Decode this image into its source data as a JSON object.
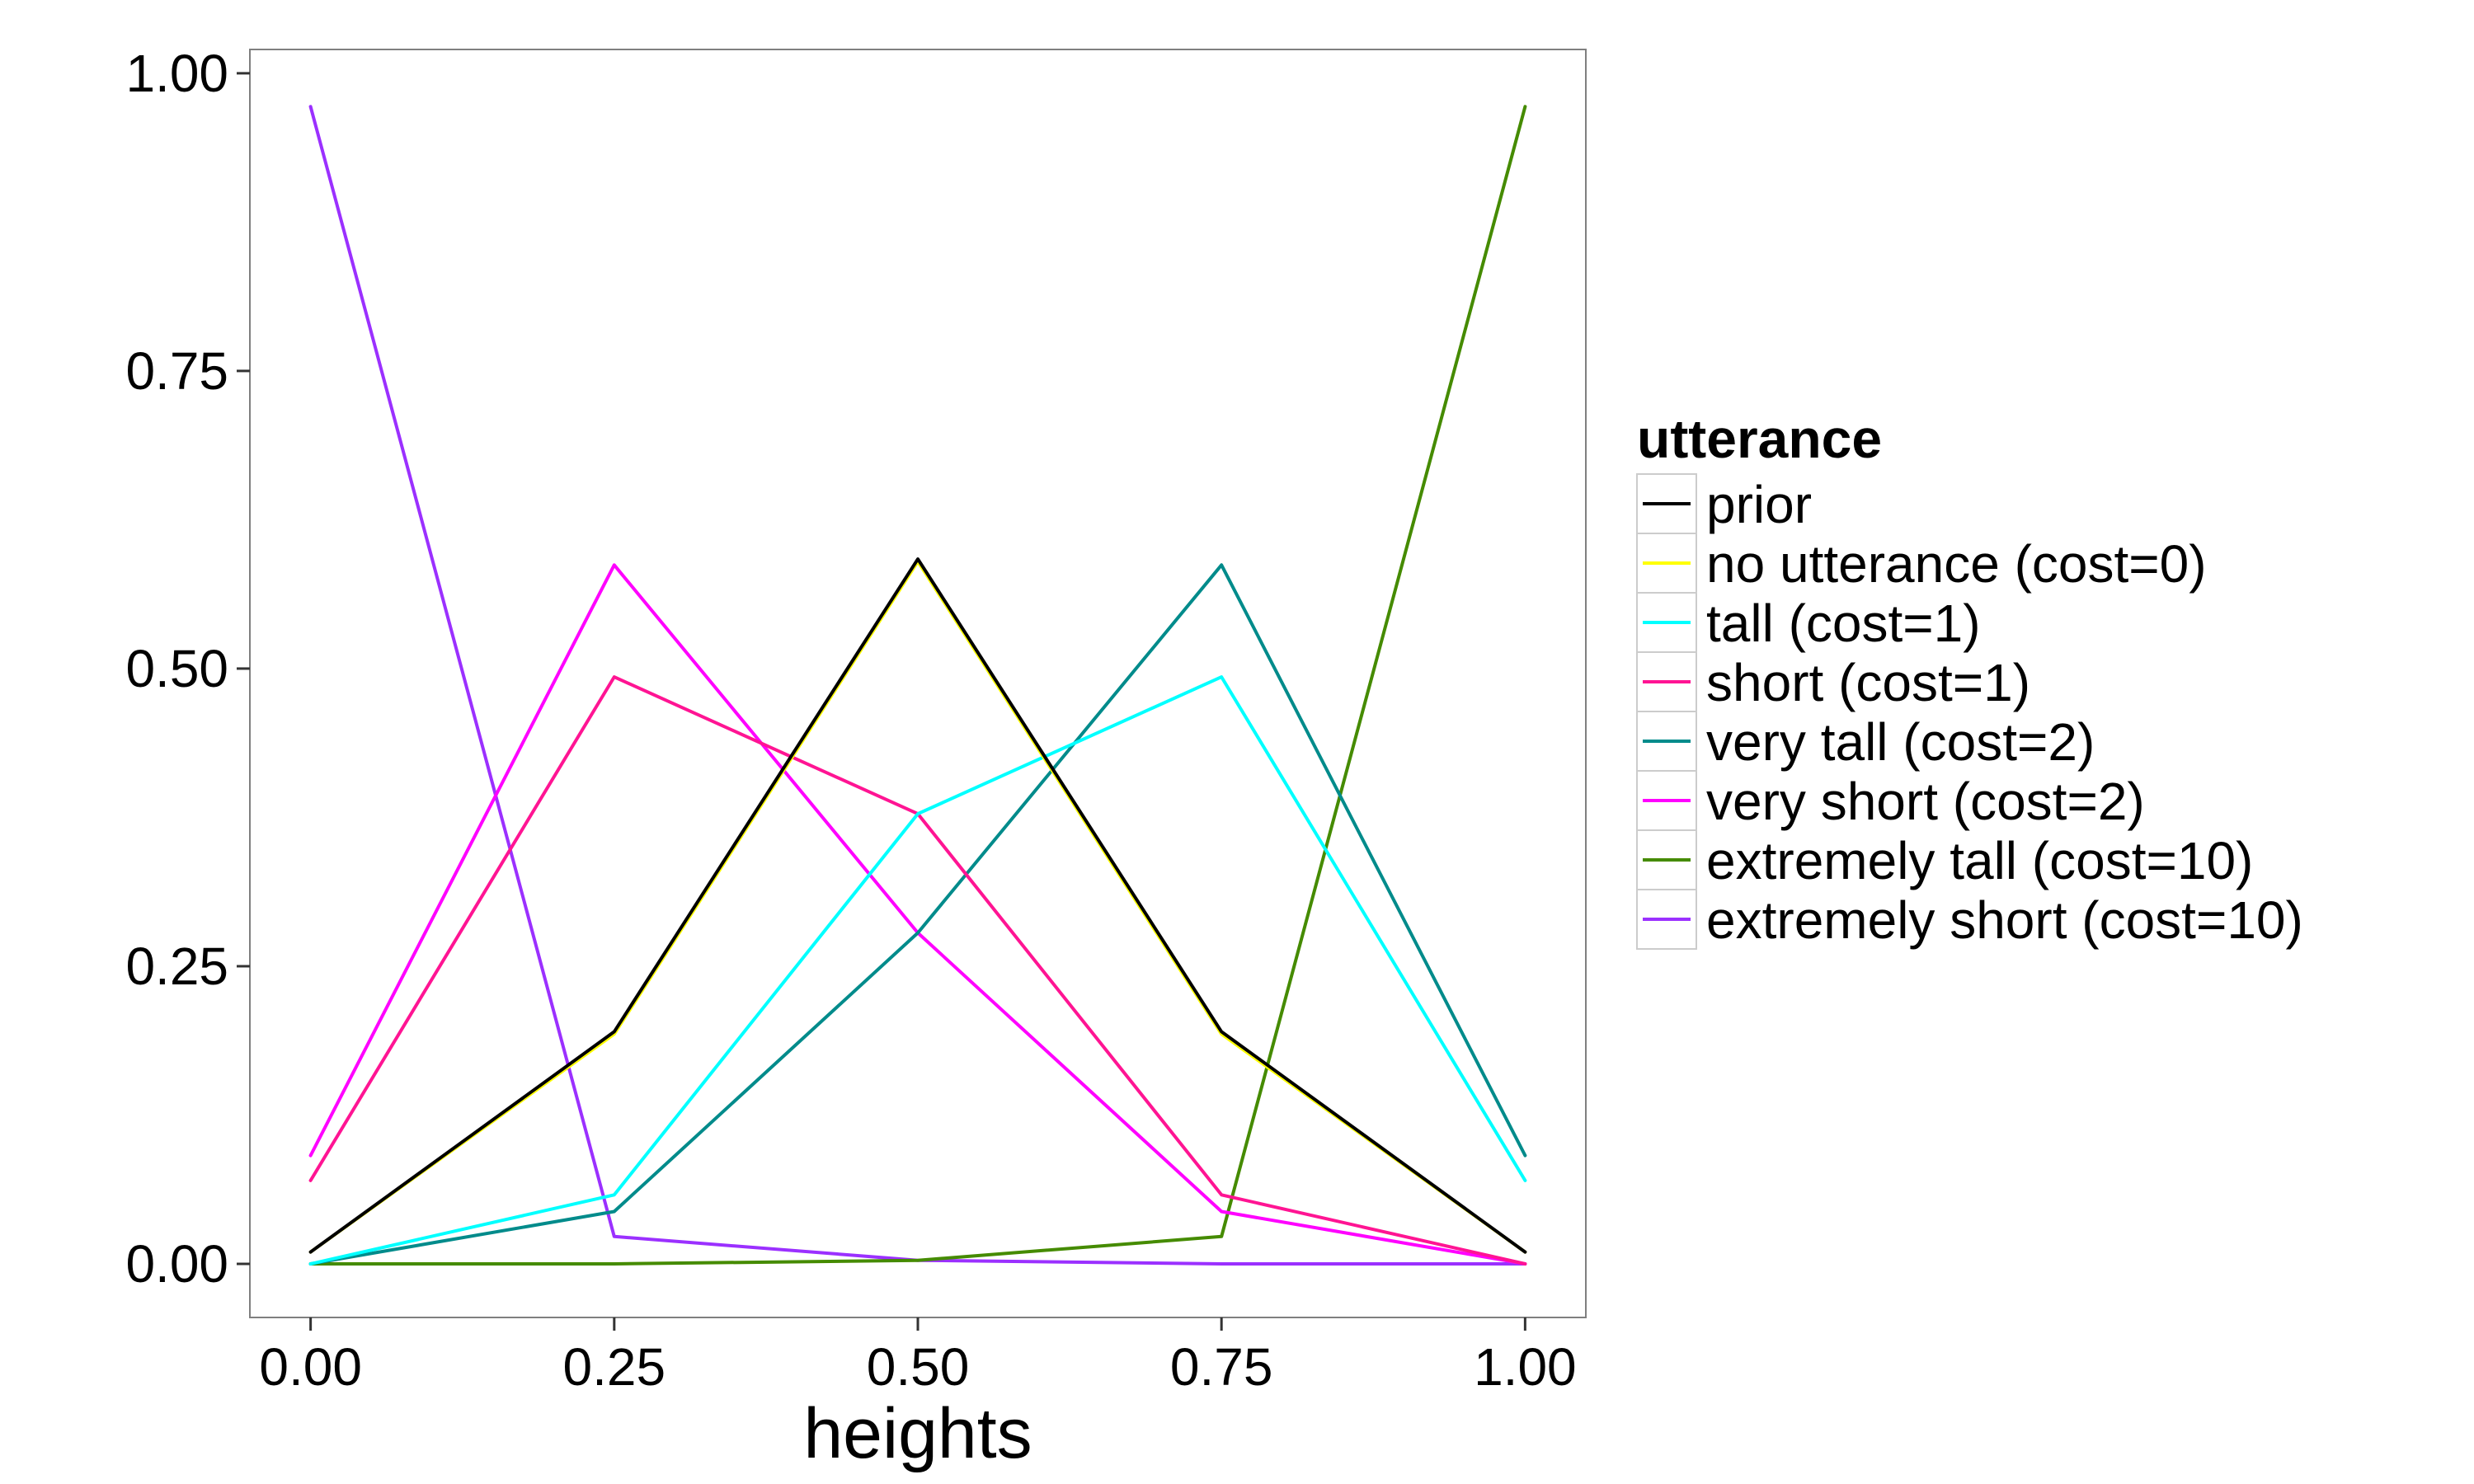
{
  "chart_data": {
    "type": "line",
    "xlabel": "heights",
    "ylabel": "",
    "xlim": [
      -0.05,
      1.05
    ],
    "ylim": [
      -0.045,
      1.02
    ],
    "x_ticks": [
      0,
      0.25,
      0.5,
      0.75,
      1
    ],
    "x_tick_labels": [
      "0.00",
      "0.25",
      "0.50",
      "0.75",
      "1.00"
    ],
    "y_ticks": [
      0,
      0.25,
      0.5,
      0.75,
      1
    ],
    "y_tick_labels": [
      "0.00",
      "0.25",
      "0.50",
      "0.75",
      "1.00"
    ],
    "grid": false,
    "legend": {
      "title": "utterance",
      "placement": "right"
    },
    "x": [
      0,
      0.25,
      0.5,
      0.75,
      1
    ],
    "series": [
      {
        "name": "prior",
        "color": "#000000",
        "values": [
          0.01,
          0.195,
          0.592,
          0.195,
          0.01
        ]
      },
      {
        "name": "no utterance (cost=0)",
        "color": "#ffff00",
        "values": [
          0.01,
          0.193,
          0.59,
          0.193,
          0.01
        ]
      },
      {
        "name": "tall (cost=1)",
        "color": "#00ffff",
        "values": [
          0.0,
          0.058,
          0.378,
          0.493,
          0.07
        ]
      },
      {
        "name": "short (cost=1)",
        "color": "#ff1493",
        "values": [
          0.07,
          0.493,
          0.378,
          0.058,
          0.0
        ]
      },
      {
        "name": "very tall (cost=2)",
        "color": "#008b8b",
        "values": [
          0.0,
          0.044,
          0.278,
          0.587,
          0.091
        ]
      },
      {
        "name": "very short (cost=2)",
        "color": "#ff00ff",
        "values": [
          0.091,
          0.587,
          0.278,
          0.044,
          0.0
        ]
      },
      {
        "name": "extremely tall (cost=10)",
        "color": "#458b00",
        "values": [
          0.0,
          0.0,
          0.003,
          0.023,
          0.972
        ]
      },
      {
        "name": "extremely short (cost=10)",
        "color": "#9b30ff",
        "values": [
          0.972,
          0.023,
          0.003,
          0.0,
          0.0
        ]
      }
    ]
  }
}
